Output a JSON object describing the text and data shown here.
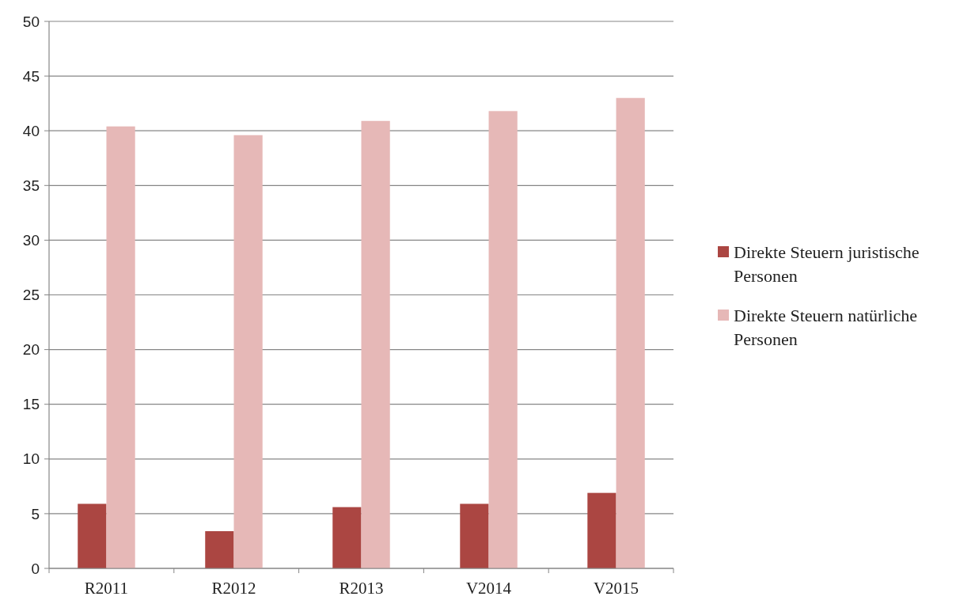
{
  "chart_data": {
    "type": "bar",
    "categories": [
      "R2011",
      "R2012",
      "R2013",
      "V2014",
      "V2015"
    ],
    "series": [
      {
        "name": "Direkte Steuern juristische Personen",
        "color": "#ab4642",
        "values": [
          5.9,
          3.4,
          5.6,
          5.9,
          6.9
        ]
      },
      {
        "name": "Direkte Steuern natürliche Personen",
        "color": "#e6b8b7",
        "values": [
          40.4,
          39.6,
          40.9,
          41.8,
          43.0
        ]
      }
    ],
    "ylim": [
      0,
      50
    ],
    "yticks": [
      0,
      5,
      10,
      15,
      20,
      25,
      30,
      35,
      40,
      45,
      50
    ],
    "grid": "y",
    "legend": "right"
  }
}
